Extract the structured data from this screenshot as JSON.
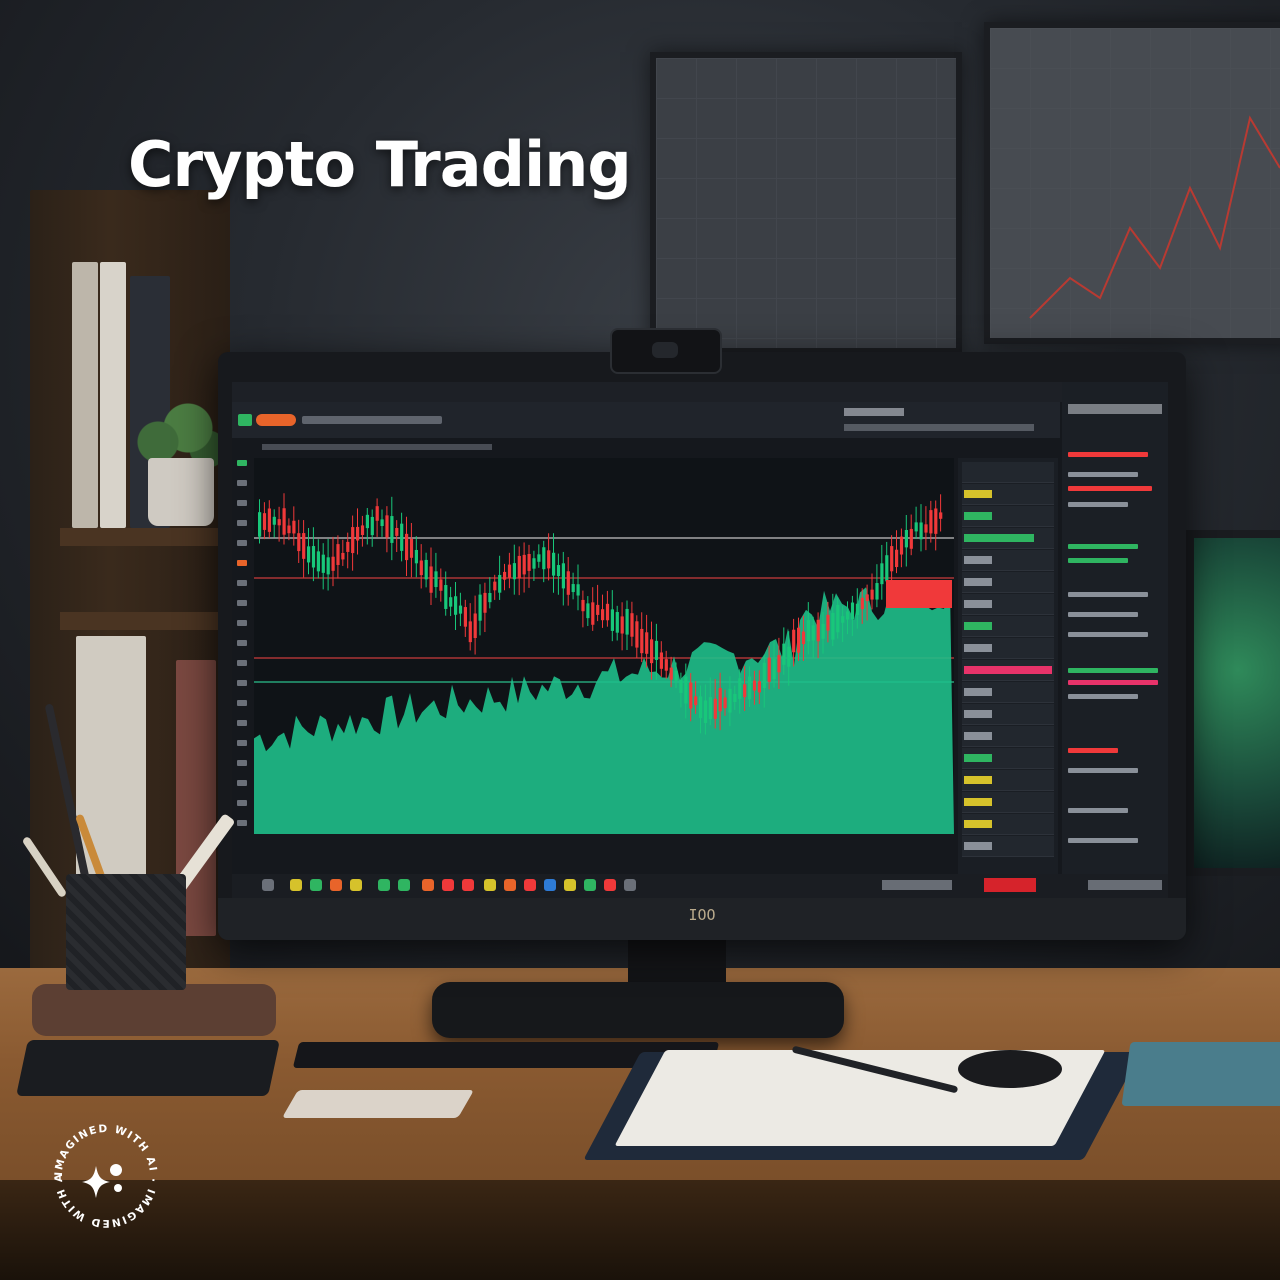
{
  "headline": "Crypto Trading",
  "monitor": {
    "brand": "IOO"
  },
  "watermark": {
    "text": "IMAGINED WITH AI · IMAGINED WITH AI ·",
    "icon": "sparkle-icon"
  },
  "colors": {
    "up": "#18c77a",
    "down": "#f0393a",
    "volume": "#1fbf8a",
    "background": "#0f1317",
    "title": "#ffffff"
  }
}
